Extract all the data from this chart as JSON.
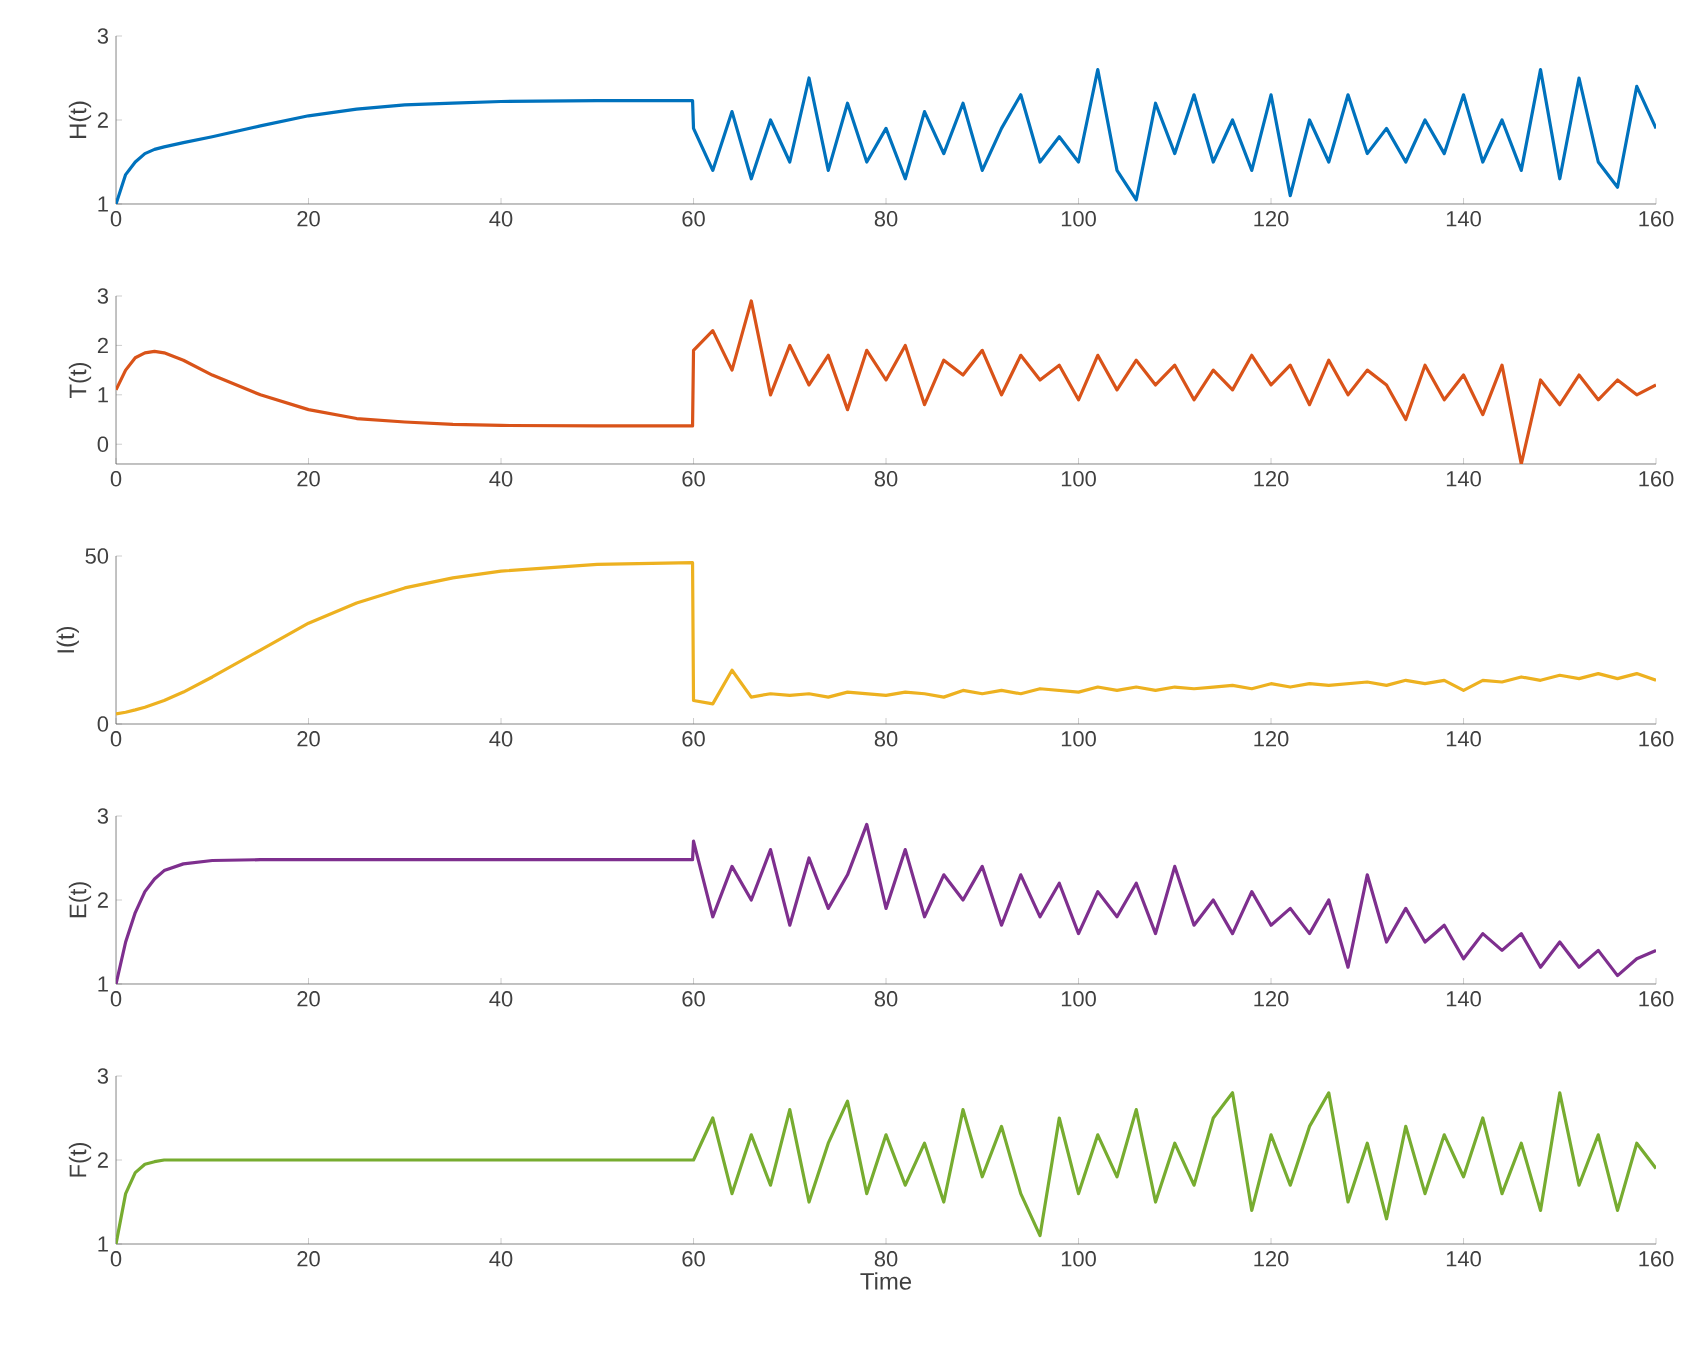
{
  "chart_data": [
    {
      "type": "line",
      "ylabel": "H(t)",
      "xlim": [
        0,
        160
      ],
      "xticks": [
        0,
        20,
        40,
        60,
        80,
        100,
        120,
        140,
        160
      ],
      "ylim": [
        1,
        3
      ],
      "yticks": [
        1,
        2,
        3
      ],
      "x": [
        0,
        1,
        2,
        3,
        4,
        5,
        7,
        10,
        15,
        20,
        25,
        30,
        35,
        40,
        50,
        59.9,
        60,
        62,
        64,
        66,
        68,
        70,
        72,
        74,
        76,
        78,
        80,
        82,
        84,
        86,
        88,
        90,
        92,
        94,
        96,
        98,
        100,
        102,
        104,
        106,
        108,
        110,
        112,
        114,
        116,
        118,
        120,
        122,
        124,
        126,
        128,
        130,
        132,
        134,
        136,
        138,
        140,
        142,
        144,
        146,
        148,
        150,
        152,
        154,
        156,
        158,
        160
      ],
      "series": [
        {
          "color": "#0072bd",
          "values": [
            1.0,
            1.35,
            1.5,
            1.6,
            1.65,
            1.68,
            1.73,
            1.8,
            1.93,
            2.05,
            2.13,
            2.18,
            2.2,
            2.22,
            2.23,
            2.23,
            1.9,
            1.4,
            2.1,
            1.3,
            2.0,
            1.5,
            2.5,
            1.4,
            2.2,
            1.5,
            1.9,
            1.3,
            2.1,
            1.6,
            2.2,
            1.4,
            1.9,
            2.3,
            1.5,
            1.8,
            1.5,
            2.6,
            1.4,
            1.05,
            2.2,
            1.6,
            2.3,
            1.5,
            2.0,
            1.4,
            2.3,
            1.1,
            2.0,
            1.5,
            2.3,
            1.6,
            1.9,
            1.5,
            2.0,
            1.6,
            2.3,
            1.5,
            2.0,
            1.4,
            2.6,
            1.3,
            2.5,
            1.5,
            1.2,
            2.4,
            1.9
          ]
        }
      ]
    },
    {
      "type": "line",
      "ylabel": "T(t)",
      "xlim": [
        0,
        160
      ],
      "xticks": [
        0,
        20,
        40,
        60,
        80,
        100,
        120,
        140,
        160
      ],
      "ylim": [
        -0.4,
        3
      ],
      "yticks": [
        0,
        1,
        2,
        3
      ],
      "x": [
        0,
        1,
        2,
        3,
        4,
        5,
        7,
        10,
        15,
        20,
        25,
        30,
        35,
        40,
        50,
        59.9,
        60,
        62,
        64,
        66,
        68,
        70,
        72,
        74,
        76,
        78,
        80,
        82,
        84,
        86,
        88,
        90,
        92,
        94,
        96,
        98,
        100,
        102,
        104,
        106,
        108,
        110,
        112,
        114,
        116,
        118,
        120,
        122,
        124,
        126,
        128,
        130,
        132,
        134,
        136,
        138,
        140,
        142,
        144,
        146,
        148,
        150,
        152,
        154,
        156,
        158,
        160
      ],
      "series": [
        {
          "color": "#d95319",
          "values": [
            1.1,
            1.5,
            1.75,
            1.85,
            1.88,
            1.85,
            1.7,
            1.4,
            1.0,
            0.7,
            0.52,
            0.45,
            0.4,
            0.38,
            0.37,
            0.37,
            1.9,
            2.3,
            1.5,
            2.9,
            1.0,
            2.0,
            1.2,
            1.8,
            0.7,
            1.9,
            1.3,
            2.0,
            0.8,
            1.7,
            1.4,
            1.9,
            1.0,
            1.8,
            1.3,
            1.6,
            0.9,
            1.8,
            1.1,
            1.7,
            1.2,
            1.6,
            0.9,
            1.5,
            1.1,
            1.8,
            1.2,
            1.6,
            0.8,
            1.7,
            1.0,
            1.5,
            1.2,
            0.5,
            1.6,
            0.9,
            1.4,
            0.6,
            1.6,
            -0.4,
            1.3,
            0.8,
            1.4,
            0.9,
            1.3,
            1.0,
            1.2
          ]
        }
      ]
    },
    {
      "type": "line",
      "ylabel": "I(t)",
      "xlim": [
        0,
        160
      ],
      "xticks": [
        0,
        20,
        40,
        60,
        80,
        100,
        120,
        140,
        160
      ],
      "ylim": [
        0,
        50
      ],
      "yticks": [
        0,
        50
      ],
      "x": [
        0,
        1,
        2,
        3,
        4,
        5,
        7,
        10,
        15,
        20,
        25,
        30,
        35,
        40,
        50,
        59.9,
        60,
        62,
        64,
        66,
        68,
        70,
        72,
        74,
        76,
        78,
        80,
        82,
        84,
        86,
        88,
        90,
        92,
        94,
        96,
        98,
        100,
        102,
        104,
        106,
        108,
        110,
        112,
        114,
        116,
        118,
        120,
        122,
        124,
        126,
        128,
        130,
        132,
        134,
        136,
        138,
        140,
        142,
        144,
        146,
        148,
        150,
        152,
        154,
        156,
        158,
        160
      ],
      "series": [
        {
          "color": "#edb120",
          "values": [
            3,
            3.5,
            4.2,
            5,
            6,
            7,
            9.5,
            14,
            22,
            30,
            36,
            40.5,
            43.5,
            45.5,
            47.5,
            48,
            7,
            6,
            16,
            8,
            9,
            8.5,
            9,
            8,
            9.5,
            9,
            8.5,
            9.5,
            9,
            8,
            10,
            9,
            10,
            9,
            10.5,
            10,
            9.5,
            11,
            10,
            11,
            10,
            11,
            10.5,
            11,
            11.5,
            10.5,
            12,
            11,
            12,
            11.5,
            12,
            12.5,
            11.5,
            13,
            12,
            13,
            10,
            13,
            12.5,
            14,
            13,
            14.5,
            13.5,
            15,
            13.5,
            15,
            13
          ]
        }
      ]
    },
    {
      "type": "line",
      "ylabel": "E(t)",
      "xlim": [
        0,
        160
      ],
      "xticks": [
        0,
        20,
        40,
        60,
        80,
        100,
        120,
        140,
        160
      ],
      "ylim": [
        1,
        3
      ],
      "yticks": [
        1,
        2,
        3
      ],
      "x": [
        0,
        1,
        2,
        3,
        4,
        5,
        7,
        10,
        15,
        20,
        25,
        30,
        35,
        40,
        50,
        59.9,
        60,
        62,
        64,
        66,
        68,
        70,
        72,
        74,
        76,
        78,
        80,
        82,
        84,
        86,
        88,
        90,
        92,
        94,
        96,
        98,
        100,
        102,
        104,
        106,
        108,
        110,
        112,
        114,
        116,
        118,
        120,
        122,
        124,
        126,
        128,
        130,
        132,
        134,
        136,
        138,
        140,
        142,
        144,
        146,
        148,
        150,
        152,
        154,
        156,
        158,
        160
      ],
      "series": [
        {
          "color": "#7e2f8e",
          "values": [
            1.0,
            1.5,
            1.85,
            2.1,
            2.25,
            2.35,
            2.43,
            2.47,
            2.48,
            2.48,
            2.48,
            2.48,
            2.48,
            2.48,
            2.48,
            2.48,
            2.7,
            1.8,
            2.4,
            2.0,
            2.6,
            1.7,
            2.5,
            1.9,
            2.3,
            2.9,
            1.9,
            2.6,
            1.8,
            2.3,
            2.0,
            2.4,
            1.7,
            2.3,
            1.8,
            2.2,
            1.6,
            2.1,
            1.8,
            2.2,
            1.6,
            2.4,
            1.7,
            2.0,
            1.6,
            2.1,
            1.7,
            1.9,
            1.6,
            2.0,
            1.2,
            2.3,
            1.5,
            1.9,
            1.5,
            1.7,
            1.3,
            1.6,
            1.4,
            1.6,
            1.2,
            1.5,
            1.2,
            1.4,
            1.1,
            1.3,
            1.4
          ]
        }
      ]
    },
    {
      "type": "line",
      "ylabel": "F(t)",
      "xlabel": "Time",
      "xlim": [
        0,
        160
      ],
      "xticks": [
        0,
        20,
        40,
        60,
        80,
        100,
        120,
        140,
        160
      ],
      "ylim": [
        1,
        3
      ],
      "yticks": [
        1,
        2,
        3
      ],
      "x": [
        0,
        1,
        2,
        3,
        4,
        5,
        7,
        10,
        15,
        20,
        25,
        30,
        35,
        40,
        50,
        59.9,
        60,
        62,
        64,
        66,
        68,
        70,
        72,
        74,
        76,
        78,
        80,
        82,
        84,
        86,
        88,
        90,
        92,
        94,
        96,
        98,
        100,
        102,
        104,
        106,
        108,
        110,
        112,
        114,
        116,
        118,
        120,
        122,
        124,
        126,
        128,
        130,
        132,
        134,
        136,
        138,
        140,
        142,
        144,
        146,
        148,
        150,
        152,
        154,
        156,
        158,
        160
      ],
      "series": [
        {
          "color": "#77ac30",
          "values": [
            1.0,
            1.6,
            1.85,
            1.95,
            1.98,
            2.0,
            2.0,
            2.0,
            2.0,
            2.0,
            2.0,
            2.0,
            2.0,
            2.0,
            2.0,
            2.0,
            2.0,
            2.5,
            1.6,
            2.3,
            1.7,
            2.6,
            1.5,
            2.2,
            2.7,
            1.6,
            2.3,
            1.7,
            2.2,
            1.5,
            2.6,
            1.8,
            2.4,
            1.6,
            1.1,
            2.5,
            1.6,
            2.3,
            1.8,
            2.6,
            1.5,
            2.2,
            1.7,
            2.5,
            2.8,
            1.4,
            2.3,
            1.7,
            2.4,
            2.8,
            1.5,
            2.2,
            1.3,
            2.4,
            1.6,
            2.3,
            1.8,
            2.5,
            1.6,
            2.2,
            1.4,
            2.8,
            1.7,
            2.3,
            1.4,
            2.2,
            1.9
          ]
        }
      ]
    }
  ]
}
